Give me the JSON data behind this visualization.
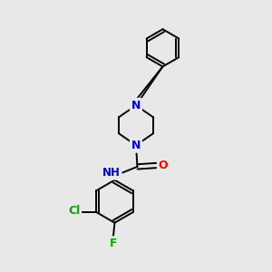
{
  "bg_color": "#e8e8e8",
  "bond_color": "#000000",
  "N_color": "#0000cc",
  "O_color": "#ff0000",
  "Cl_color": "#00aa00",
  "F_color": "#00aa00",
  "H_color": "#708090",
  "line_width": 1.4,
  "figsize": [
    3.0,
    3.0
  ],
  "dpi": 100,
  "xlim": [
    0,
    10
  ],
  "ylim": [
    0,
    10
  ]
}
